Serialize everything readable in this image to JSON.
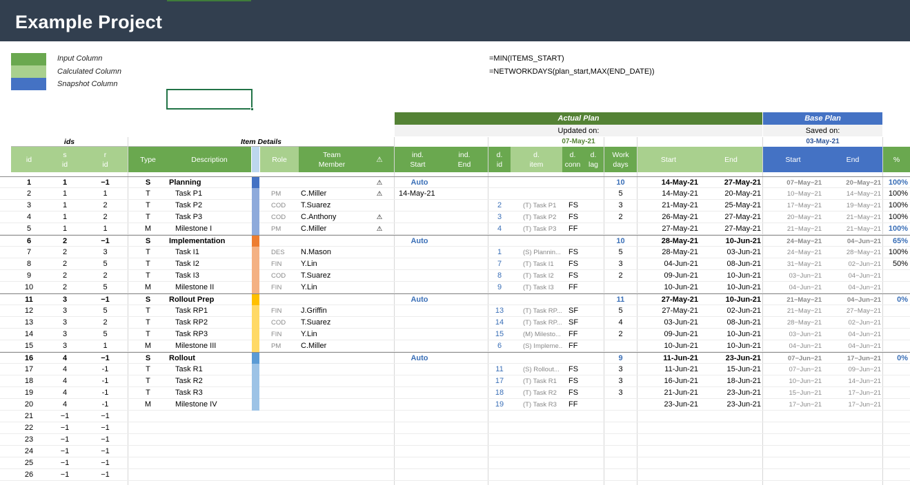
{
  "title": "Example Project",
  "legend": [
    {
      "label": "Input Column",
      "color": "#6aa84f"
    },
    {
      "label": "Calculated Column",
      "color": "#a9d08e"
    },
    {
      "label": "Snapshot Column",
      "color": "#4472c4"
    }
  ],
  "formulas": [
    "=MIN(ITEMS_START)",
    "=NETWORKDAYS(plan_start,MAX(END_DATE))"
  ],
  "bands": {
    "actual_plan": "Actual Plan",
    "base_plan": "Base Plan",
    "updated_on": "Updated on:",
    "updated_date": "07-May-21",
    "saved_on": "Saved on:",
    "saved_date": "03-May-21",
    "ids": "ids",
    "item_details": "Item Details"
  },
  "headers": {
    "id": "id",
    "sid_1": "s",
    "sid_2": "id",
    "rid_1": "r",
    "rid_2": "id",
    "type": "Type",
    "description": "Description",
    "role": "Role",
    "team_1": "Team",
    "team_2": "Member",
    "warn": "⚠",
    "ind_start_1": "ind.",
    "ind_start_2": "Start",
    "ind_end_1": "ind.",
    "ind_end_2": "End",
    "did_1": "d.",
    "did_2": "id",
    "ditem_1": "d.",
    "ditem_2": "item",
    "dconn_1": "d.",
    "dconn_2": "conn",
    "dlag_1": "d.",
    "dlag_2": "lag",
    "work_1": "Work",
    "work_2": "days",
    "start": "Start",
    "end": "End",
    "base_start": "Start",
    "base_end": "End",
    "pct": "%"
  },
  "colors": {
    "input": "#6aa84f",
    "calc": "#a9d08e",
    "snapshot": "#4472c4",
    "dark_green": "#548235",
    "title_bg": "#323f4f"
  },
  "rows": [
    {
      "id": "1",
      "sid": "1",
      "rid": "−1",
      "type": "S",
      "desc": "Planning",
      "sum": true,
      "bar": "#4472c4",
      "role": "",
      "member": "",
      "warn": "⚠",
      "ind_start": "Auto",
      "ind_end": "",
      "did": "",
      "ditem": "",
      "conn": "",
      "lag": "",
      "work": "10",
      "start": "14-May-21",
      "end": "27-May-21",
      "bstart": "07−May−21",
      "bend": "20−May−21",
      "pct": "100%"
    },
    {
      "id": "2",
      "sid": "1",
      "rid": "1",
      "type": "T",
      "desc": "Task P1",
      "bar": "#8eaadb",
      "role": "PM",
      "member": "C.Miller",
      "warn": "⚠",
      "ind_start": "14-May-21",
      "ind_end": "",
      "did": "",
      "ditem": "",
      "conn": "",
      "lag": "",
      "work": "5",
      "start": "14-May-21",
      "end": "20-May-21",
      "bstart": "10−May−21",
      "bend": "14−May−21",
      "pct": "100%"
    },
    {
      "id": "3",
      "sid": "1",
      "rid": "2",
      "type": "T",
      "desc": "Task P2",
      "bar": "#8eaadb",
      "role": "COD",
      "member": "T.Suarez",
      "warn": "",
      "ind_start": "",
      "ind_end": "",
      "did": "2",
      "ditem": "(T) Task P1",
      "conn": "FS",
      "lag": "",
      "work": "3",
      "start": "21-May-21",
      "end": "25-May-21",
      "bstart": "17−May−21",
      "bend": "19−May−21",
      "pct": "100%"
    },
    {
      "id": "4",
      "sid": "1",
      "rid": "2",
      "type": "T",
      "desc": "Task P3",
      "bar": "#8eaadb",
      "role": "COD",
      "member": "C.Anthony",
      "warn": "⚠",
      "ind_start": "",
      "ind_end": "",
      "did": "3",
      "ditem": "(T) Task P2",
      "conn": "FS",
      "lag": "",
      "work": "2",
      "start": "26-May-21",
      "end": "27-May-21",
      "bstart": "20−May−21",
      "bend": "21−May−21",
      "pct": "100%"
    },
    {
      "id": "5",
      "sid": "1",
      "rid": "1",
      "type": "M",
      "desc": "Milestone I",
      "bar": "#8eaadb",
      "role": "PM",
      "member": "C.Miller",
      "warn": "⚠",
      "ind_start": "",
      "ind_end": "",
      "did": "4",
      "ditem": "(T) Task P3",
      "conn": "FF",
      "lag": "",
      "work": "",
      "start": "27-May-21",
      "end": "27-May-21",
      "bstart": "21−May−21",
      "bend": "21−May−21",
      "pct": "100%"
    },
    {
      "id": "6",
      "sid": "2",
      "rid": "−1",
      "type": "S",
      "desc": "Implementation",
      "sum": true,
      "bar": "#ed7d31",
      "role": "",
      "member": "",
      "warn": "",
      "ind_start": "Auto",
      "ind_end": "",
      "did": "",
      "ditem": "",
      "conn": "",
      "lag": "",
      "work": "10",
      "start": "28-May-21",
      "end": "10-Jun-21",
      "bstart": "24−May−21",
      "bend": "04−Jun−21",
      "pct": "65%"
    },
    {
      "id": "7",
      "sid": "2",
      "rid": "3",
      "type": "T",
      "desc": "Task I1",
      "bar": "#f4b183",
      "role": "DES",
      "member": "N.Mason",
      "warn": "",
      "ind_start": "",
      "ind_end": "",
      "did": "1",
      "ditem": "(S) Plannin...",
      "conn": "FS",
      "lag": "",
      "work": "5",
      "start": "28-May-21",
      "end": "03-Jun-21",
      "bstart": "24−May−21",
      "bend": "28−May−21",
      "pct": "100%"
    },
    {
      "id": "8",
      "sid": "2",
      "rid": "5",
      "type": "T",
      "desc": "Task I2",
      "bar": "#f4b183",
      "role": "FIN",
      "member": "Y.Lin",
      "warn": "",
      "ind_start": "",
      "ind_end": "",
      "did": "7",
      "ditem": "(T) Task I1",
      "conn": "FS",
      "lag": "",
      "work": "3",
      "start": "04-Jun-21",
      "end": "08-Jun-21",
      "bstart": "31−May−21",
      "bend": "02−Jun−21",
      "pct": "50%"
    },
    {
      "id": "9",
      "sid": "2",
      "rid": "2",
      "type": "T",
      "desc": "Task I3",
      "bar": "#f4b183",
      "role": "COD",
      "member": "T.Suarez",
      "warn": "",
      "ind_start": "",
      "ind_end": "",
      "did": "8",
      "ditem": "(T) Task I2",
      "conn": "FS",
      "lag": "",
      "work": "2",
      "start": "09-Jun-21",
      "end": "10-Jun-21",
      "bstart": "03−Jun−21",
      "bend": "04−Jun−21",
      "pct": ""
    },
    {
      "id": "10",
      "sid": "2",
      "rid": "5",
      "type": "M",
      "desc": "Milestone II",
      "bar": "#f4b183",
      "role": "FIN",
      "member": "Y.Lin",
      "warn": "",
      "ind_start": "",
      "ind_end": "",
      "did": "9",
      "ditem": "(T) Task I3",
      "conn": "FF",
      "lag": "",
      "work": "",
      "start": "10-Jun-21",
      "end": "10-Jun-21",
      "bstart": "04−Jun−21",
      "bend": "04−Jun−21",
      "pct": ""
    },
    {
      "id": "11",
      "sid": "3",
      "rid": "−1",
      "type": "S",
      "desc": "Rollout Prep",
      "sum": true,
      "bar": "#ffc000",
      "role": "",
      "member": "",
      "warn": "",
      "ind_start": "Auto",
      "ind_end": "",
      "did": "",
      "ditem": "",
      "conn": "",
      "lag": "",
      "work": "11",
      "start": "27-May-21",
      "end": "10-Jun-21",
      "bstart": "21−May−21",
      "bend": "04−Jun−21",
      "pct": "0%"
    },
    {
      "id": "12",
      "sid": "3",
      "rid": "5",
      "type": "T",
      "desc": "Task RP1",
      "bar": "#ffd966",
      "role": "FIN",
      "member": "J.Griffin",
      "warn": "",
      "ind_start": "",
      "ind_end": "",
      "did": "13",
      "ditem": "(T) Task RP...",
      "conn": "SF",
      "lag": "",
      "work": "5",
      "start": "27-May-21",
      "end": "02-Jun-21",
      "bstart": "21−May−21",
      "bend": "27−May−21",
      "pct": ""
    },
    {
      "id": "13",
      "sid": "3",
      "rid": "2",
      "type": "T",
      "desc": "Task RP2",
      "bar": "#ffd966",
      "role": "COD",
      "member": "T.Suarez",
      "warn": "",
      "ind_start": "",
      "ind_end": "",
      "did": "14",
      "ditem": "(T) Task RP...",
      "conn": "SF",
      "lag": "",
      "work": "4",
      "start": "03-Jun-21",
      "end": "08-Jun-21",
      "bstart": "28−May−21",
      "bend": "02−Jun−21",
      "pct": ""
    },
    {
      "id": "14",
      "sid": "3",
      "rid": "5",
      "type": "T",
      "desc": "Task RP3",
      "bar": "#ffd966",
      "role": "FIN",
      "member": "Y.Lin",
      "warn": "",
      "ind_start": "",
      "ind_end": "",
      "did": "15",
      "ditem": "(M) Milesto...",
      "conn": "FF",
      "lag": "",
      "work": "2",
      "start": "09-Jun-21",
      "end": "10-Jun-21",
      "bstart": "03−Jun−21",
      "bend": "04−Jun−21",
      "pct": ""
    },
    {
      "id": "15",
      "sid": "3",
      "rid": "1",
      "type": "M",
      "desc": "Milestone III",
      "bar": "#ffd966",
      "role": "PM",
      "member": "C.Miller",
      "warn": "",
      "ind_start": "",
      "ind_end": "",
      "did": "6",
      "ditem": "(S) Impleme...",
      "conn": "FF",
      "lag": "",
      "work": "",
      "start": "10-Jun-21",
      "end": "10-Jun-21",
      "bstart": "04−Jun−21",
      "bend": "04−Jun−21",
      "pct": ""
    },
    {
      "id": "16",
      "sid": "4",
      "rid": "−1",
      "type": "S",
      "desc": "Rollout",
      "sum": true,
      "bar": "#5b9bd5",
      "role": "",
      "member": "",
      "warn": "",
      "ind_start": "Auto",
      "ind_end": "",
      "did": "",
      "ditem": "",
      "conn": "",
      "lag": "",
      "work": "9",
      "start": "11-Jun-21",
      "end": "23-Jun-21",
      "bstart": "07−Jun−21",
      "bend": "17−Jun−21",
      "pct": "0%"
    },
    {
      "id": "17",
      "sid": "4",
      "rid": "-1",
      "type": "T",
      "desc": "Task R1",
      "bar": "#9dc3e6",
      "role": "",
      "member": "",
      "warn": "",
      "ind_start": "",
      "ind_end": "",
      "did": "11",
      "ditem": "(S) Rollout...",
      "conn": "FS",
      "lag": "",
      "work": "3",
      "start": "11-Jun-21",
      "end": "15-Jun-21",
      "bstart": "07−Jun−21",
      "bend": "09−Jun−21",
      "pct": ""
    },
    {
      "id": "18",
      "sid": "4",
      "rid": "-1",
      "type": "T",
      "desc": "Task R2",
      "bar": "#9dc3e6",
      "role": "",
      "member": "",
      "warn": "",
      "ind_start": "",
      "ind_end": "",
      "did": "17",
      "ditem": "(T) Task R1",
      "conn": "FS",
      "lag": "",
      "work": "3",
      "start": "16-Jun-21",
      "end": "18-Jun-21",
      "bstart": "10−Jun−21",
      "bend": "14−Jun−21",
      "pct": ""
    },
    {
      "id": "19",
      "sid": "4",
      "rid": "-1",
      "type": "T",
      "desc": "Task R3",
      "bar": "#9dc3e6",
      "role": "",
      "member": "",
      "warn": "",
      "ind_start": "",
      "ind_end": "",
      "did": "18",
      "ditem": "(T) Task R2",
      "conn": "FS",
      "lag": "",
      "work": "3",
      "start": "21-Jun-21",
      "end": "23-Jun-21",
      "bstart": "15−Jun−21",
      "bend": "17−Jun−21",
      "pct": ""
    },
    {
      "id": "20",
      "sid": "4",
      "rid": "-1",
      "type": "M",
      "desc": "Milestone IV",
      "bar": "#9dc3e6",
      "role": "",
      "member": "",
      "warn": "",
      "ind_start": "",
      "ind_end": "",
      "did": "19",
      "ditem": "(T) Task R3",
      "conn": "FF",
      "lag": "",
      "work": "",
      "start": "23-Jun-21",
      "end": "23-Jun-21",
      "bstart": "17−Jun−21",
      "bend": "17−Jun−21",
      "pct": ""
    },
    {
      "id": "21",
      "sid": "−1",
      "rid": "−1"
    },
    {
      "id": "22",
      "sid": "−1",
      "rid": "−1"
    },
    {
      "id": "23",
      "sid": "−1",
      "rid": "−1"
    },
    {
      "id": "24",
      "sid": "−1",
      "rid": "−1"
    },
    {
      "id": "25",
      "sid": "−1",
      "rid": "−1"
    },
    {
      "id": "26",
      "sid": "−1",
      "rid": "−1"
    }
  ]
}
